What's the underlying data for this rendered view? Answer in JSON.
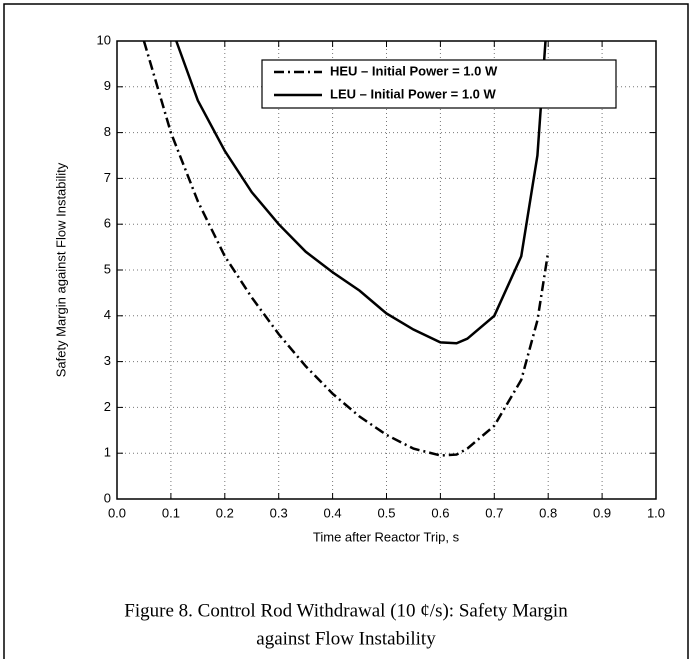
{
  "chart_data": {
    "type": "line",
    "xlabel": "Time after Reactor Trip, s",
    "ylabel": "Safety Margin against Flow Instability",
    "xlim": [
      0,
      1
    ],
    "ylim": [
      0,
      10
    ],
    "xticks": [
      {
        "value": 0,
        "label": "0.0"
      },
      {
        "value": 0.1,
        "label": "0.1"
      },
      {
        "value": 0.2,
        "label": "0.2"
      },
      {
        "value": 0.3,
        "label": "0.3"
      },
      {
        "value": 0.4,
        "label": "0.4"
      },
      {
        "value": 0.5,
        "label": "0.5"
      },
      {
        "value": 0.6,
        "label": "0.6"
      },
      {
        "value": 0.7,
        "label": "0.7"
      },
      {
        "value": 0.8,
        "label": "0.8"
      },
      {
        "value": 0.9,
        "label": "0.9"
      },
      {
        "value": 1,
        "label": "1.0"
      }
    ],
    "yticks": [
      0,
      1,
      2,
      3,
      4,
      5,
      6,
      7,
      8,
      9,
      10
    ],
    "grid": true,
    "legend": "upper right",
    "series": [
      {
        "name": "HEU – Initial Power = 1.0 W",
        "color": "#000000",
        "line_style": "dashdot",
        "x": [
          0.05,
          0.1,
          0.15,
          0.2,
          0.25,
          0.3,
          0.35,
          0.4,
          0.45,
          0.5,
          0.55,
          0.6,
          0.63,
          0.65,
          0.7,
          0.75,
          0.78,
          0.8
        ],
        "values": [
          10,
          8.0,
          6.5,
          5.3,
          4.4,
          3.6,
          2.9,
          2.3,
          1.8,
          1.4,
          1.1,
          0.95,
          0.97,
          1.1,
          1.6,
          2.6,
          3.9,
          5.4
        ]
      },
      {
        "name": "LEU – Initial Power = 1.0 W",
        "color": "#000000",
        "line_style": "solid",
        "x": [
          0.11,
          0.15,
          0.2,
          0.25,
          0.3,
          0.35,
          0.4,
          0.45,
          0.5,
          0.55,
          0.6,
          0.63,
          0.65,
          0.7,
          0.75,
          0.78,
          0.795
        ],
        "values": [
          10,
          8.7,
          7.6,
          6.7,
          6.0,
          5.4,
          4.95,
          4.55,
          4.05,
          3.7,
          3.42,
          3.4,
          3.5,
          4.0,
          5.3,
          7.5,
          10
        ]
      }
    ]
  },
  "caption": [
    "Figure 8.  Control Rod Withdrawal (10 ¢/s): Safety Margin",
    "against Flow Instability"
  ]
}
